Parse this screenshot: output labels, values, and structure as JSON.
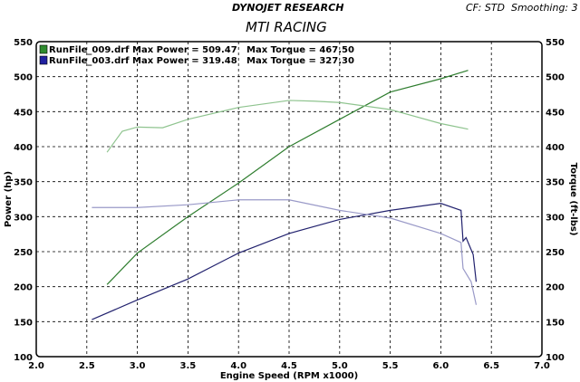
{
  "header": {
    "company": "DYNOJET RESEARCH",
    "title": "MTI RACING",
    "settings": "CF: STD  Smoothing: 3"
  },
  "chart_data": {
    "type": "line",
    "title": "MTI RACING",
    "xlabel": "Engine Speed (RPM x1000)",
    "ylabel": "Power (hp)",
    "y2label": "Torque (ft-lbs)",
    "xlim": [
      2.0,
      7.0
    ],
    "ylim": [
      100,
      550
    ],
    "y2lim": [
      100,
      550
    ],
    "xticks": [
      "2.0",
      "2.5",
      "3.0",
      "3.5",
      "4.0",
      "4.5",
      "5.0",
      "5.5",
      "6.0",
      "6.5",
      "7.0"
    ],
    "yticks": [
      "100",
      "150",
      "200",
      "250",
      "300",
      "350",
      "400",
      "450",
      "500",
      "550"
    ],
    "grid": true,
    "legend_placement": "top-left",
    "legend": [
      {
        "label": "RunFile_009.drf Max Power = 509.47",
        "torque_label": "Max Torque = 467.50",
        "color": "#2e8b2e"
      },
      {
        "label": "RunFile_003.drf Max Power = 319.48",
        "torque_label": "Max Torque = 327.30",
        "color": "#2020a0"
      }
    ],
    "series": [
      {
        "name": "RunFile_009.drf Power",
        "color": "#2e7d2e",
        "x": [
          2.7,
          3.0,
          3.5,
          4.0,
          4.5,
          5.0,
          5.5,
          6.0,
          6.27
        ],
        "y": [
          203,
          248,
          300,
          348,
          400,
          439,
          478,
          497,
          509
        ]
      },
      {
        "name": "RunFile_009.drf Torque",
        "color": "#8fc48f",
        "x": [
          2.7,
          2.85,
          3.0,
          3.25,
          3.5,
          4.0,
          4.5,
          4.75,
          5.0,
          5.5,
          6.0,
          6.27
        ],
        "y": [
          392,
          422,
          428,
          427,
          439,
          456,
          466,
          465,
          463,
          453,
          433,
          425
        ]
      },
      {
        "name": "RunFile_003.drf Power",
        "color": "#22226e",
        "x": [
          2.55,
          3.0,
          3.5,
          4.0,
          4.5,
          5.0,
          5.5,
          6.0,
          6.2,
          6.22,
          6.25,
          6.32,
          6.35
        ],
        "y": [
          153,
          181,
          211,
          248,
          276,
          296,
          309,
          319,
          309,
          265,
          270,
          246,
          207
        ]
      },
      {
        "name": "RunFile_003.drf Torque",
        "color": "#9a9ac8",
        "x": [
          2.55,
          3.0,
          3.5,
          4.0,
          4.5,
          5.0,
          5.5,
          6.0,
          6.2,
          6.22,
          6.3,
          6.35
        ],
        "y": [
          313,
          313,
          317,
          324,
          324,
          309,
          298,
          276,
          263,
          226,
          207,
          174
        ]
      }
    ]
  }
}
